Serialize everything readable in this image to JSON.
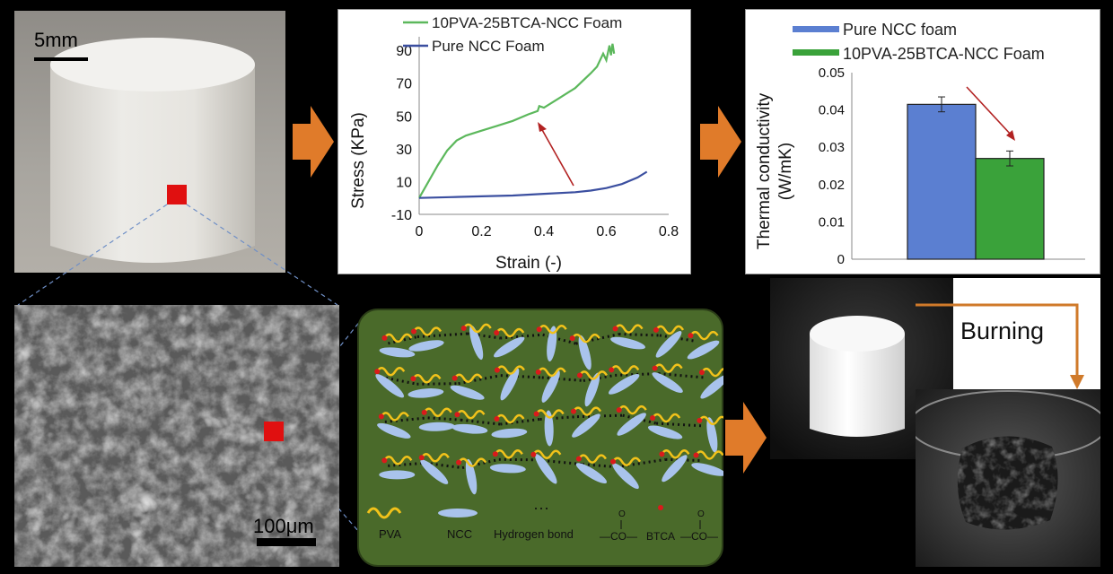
{
  "photo": {
    "scale_label": "5mm"
  },
  "stress_chart": {
    "type": "line",
    "xlabel": "Strain (-)",
    "ylabel": "Stress (KPa)",
    "xlim": [
      0,
      0.8
    ],
    "ylim": [
      -10,
      95
    ],
    "xticks": [
      0,
      0.2,
      0.4,
      0.6,
      0.8
    ],
    "yticks": [
      -10,
      10,
      30,
      50,
      70,
      90
    ],
    "legend_position": "top",
    "series": [
      {
        "name": "10PVA-25BTCA-NCC Foam",
        "color": "#5cb85c",
        "x": [
          0,
          0.03,
          0.06,
          0.09,
          0.12,
          0.15,
          0.2,
          0.25,
          0.3,
          0.35,
          0.38,
          0.385,
          0.4,
          0.45,
          0.5,
          0.55,
          0.57,
          0.59,
          0.6,
          0.61,
          0.615,
          0.62,
          0.625
        ],
        "y": [
          0,
          10,
          20,
          29,
          35,
          38,
          41,
          44,
          47,
          51,
          53,
          56,
          55,
          61,
          67,
          76,
          80,
          88,
          84,
          93,
          87,
          94,
          88
        ]
      },
      {
        "name": "Pure NCC Foam",
        "color": "#3b4fa0",
        "x": [
          0,
          0.1,
          0.2,
          0.3,
          0.4,
          0.5,
          0.55,
          0.6,
          0.65,
          0.7,
          0.73
        ],
        "y": [
          0,
          0.5,
          1,
          1.5,
          2.5,
          3.5,
          4.5,
          6,
          8.5,
          12.5,
          16
        ]
      }
    ]
  },
  "thermal_chart": {
    "type": "bar",
    "ylabel": "Thermal conductivity (W/mK)",
    "ylabel_line1": "Thermal conductivity",
    "ylabel_line2": "(W/mK)",
    "ylim": [
      0,
      0.05
    ],
    "yticks": [
      "0",
      "0.01",
      "0.02",
      "0.03",
      "0.04",
      "0.05"
    ],
    "legend_position": "top",
    "series": [
      {
        "name": "Pure NCC foam",
        "value": 0.0415,
        "error": 0.002,
        "color": "#5b7fd1"
      },
      {
        "name": "10PVA-25BTCA-NCC Foam",
        "value": 0.027,
        "error": 0.002,
        "color": "#3aa23a"
      }
    ]
  },
  "sem": {
    "scale_label": "100μm"
  },
  "schematic": {
    "legend": {
      "pva": "PVA",
      "ncc": "NCC",
      "hbond": "Hydrogen bond",
      "link_left": "—CO—",
      "link_mid": "BTCA",
      "link_right": "—CO—",
      "carbonyl_o": "O"
    }
  },
  "burning": {
    "label": "Burning"
  }
}
